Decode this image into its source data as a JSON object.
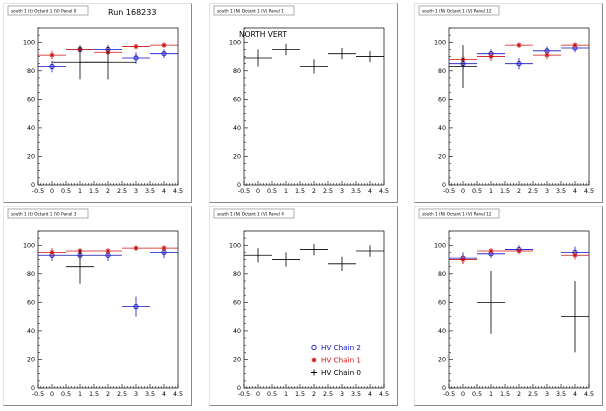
{
  "header": {
    "run_label": "Run 168233"
  },
  "colors": {
    "chain2": "#1010c8",
    "chain1": "#d01010",
    "chain0": "#000000"
  },
  "legend": [
    {
      "key": "chain2",
      "label": "HV Chain 2",
      "marker": "circle"
    },
    {
      "key": "chain1",
      "label": "HV Chain 1",
      "marker": "star"
    },
    {
      "key": "chain0",
      "label": "HV Chain 0",
      "marker": "cross"
    }
  ],
  "chart_data": [
    {
      "type": "scatter",
      "title": "south 1 (t) Octant 1 (V) Panel 0",
      "annotation": "",
      "xlim": [
        -0.5,
        4.5
      ],
      "ylim": [
        0,
        110
      ],
      "x_ticks": [
        "-0.5",
        "0",
        "0.5",
        "1",
        "1.5",
        "2",
        "2.5",
        "3",
        "3.5",
        "4",
        "4.5"
      ],
      "y_ticks": [
        "0",
        "20",
        "40",
        "60",
        "80",
        "100"
      ],
      "series": [
        {
          "key": "chain2",
          "points": [
            {
              "x": 0,
              "y": 83,
              "ex": 0.5,
              "ey": 4
            },
            {
              "x": 1,
              "y": 95,
              "ex": 0.5,
              "ey": 2
            },
            {
              "x": 2,
              "y": 95,
              "ex": 0.5,
              "ey": 2
            },
            {
              "x": 3,
              "y": 89,
              "ex": 0.5,
              "ey": 4
            },
            {
              "x": 4,
              "y": 92,
              "ex": 0.5,
              "ey": 3
            }
          ]
        },
        {
          "key": "chain1",
          "points": [
            {
              "x": 0,
              "y": 91,
              "ex": 0.5,
              "ey": 3
            },
            {
              "x": 1,
              "y": 95,
              "ex": 0.5,
              "ey": 2
            },
            {
              "x": 2,
              "y": 93,
              "ex": 0.5,
              "ey": 2
            },
            {
              "x": 3,
              "y": 97,
              "ex": 0.5,
              "ey": 2
            },
            {
              "x": 4,
              "y": 98,
              "ex": 0.5,
              "ey": 2
            }
          ]
        },
        {
          "key": "chain0",
          "points": [
            {
              "x": 1,
              "y": 86,
              "ex": 1.0,
              "ey": 12
            },
            {
              "x": 2,
              "y": 86,
              "ex": 1.0,
              "ey": 12
            }
          ]
        }
      ]
    },
    {
      "type": "scatter",
      "title": "south 1 (N) Octant 1 (V) Panel 1",
      "annotation": "NORTH VERT",
      "xlim": [
        -0.5,
        4.5
      ],
      "ylim": [
        0,
        110
      ],
      "x_ticks": [
        "-0.5",
        "0",
        "0.5",
        "1",
        "1.5",
        "2",
        "2.5",
        "3",
        "3.5",
        "4",
        "4.5"
      ],
      "y_ticks": [
        "0",
        "20",
        "40",
        "60",
        "80",
        "100"
      ],
      "series": [
        {
          "key": "chain0",
          "points": [
            {
              "x": 0,
              "y": 89,
              "ex": 0.5,
              "ey": 6
            },
            {
              "x": 1,
              "y": 95,
              "ex": 0.5,
              "ey": 4
            },
            {
              "x": 2,
              "y": 83,
              "ex": 0.5,
              "ey": 5
            },
            {
              "x": 3,
              "y": 92,
              "ex": 0.5,
              "ey": 4
            },
            {
              "x": 4,
              "y": 90,
              "ex": 0.5,
              "ey": 4
            }
          ]
        }
      ]
    },
    {
      "type": "scatter",
      "title": "south 1 (N) Octant 1 (V) Panel 12",
      "annotation": "",
      "xlim": [
        -0.5,
        4.5
      ],
      "ylim": [
        0,
        110
      ],
      "x_ticks": [
        "-0.5",
        "0",
        "0.5",
        "1",
        "1.5",
        "2",
        "2.5",
        "3",
        "3.5",
        "4",
        "4.5"
      ],
      "y_ticks": [
        "0",
        "20",
        "40",
        "60",
        "80",
        "100"
      ],
      "series": [
        {
          "key": "chain2",
          "points": [
            {
              "x": 0,
              "y": 85,
              "ex": 0.5,
              "ey": 4
            },
            {
              "x": 1,
              "y": 92,
              "ex": 0.5,
              "ey": 3
            },
            {
              "x": 2,
              "y": 85,
              "ex": 0.5,
              "ey": 4
            },
            {
              "x": 3,
              "y": 94,
              "ex": 0.5,
              "ey": 3
            },
            {
              "x": 4,
              "y": 96,
              "ex": 0.5,
              "ey": 3
            }
          ]
        },
        {
          "key": "chain1",
          "points": [
            {
              "x": 0,
              "y": 88,
              "ex": 0.5,
              "ey": 3
            },
            {
              "x": 1,
              "y": 90,
              "ex": 0.5,
              "ey": 3
            },
            {
              "x": 2,
              "y": 98,
              "ex": 0.5,
              "ey": 2
            },
            {
              "x": 3,
              "y": 91,
              "ex": 0.5,
              "ey": 3
            },
            {
              "x": 4,
              "y": 98,
              "ex": 0.5,
              "ey": 2
            }
          ]
        },
        {
          "key": "chain0",
          "points": [
            {
              "x": 0,
              "y": 83,
              "ex": 0.5,
              "ey": 15
            }
          ]
        }
      ]
    },
    {
      "type": "scatter",
      "title": "south 1 (t) Octant 1 (V) Panel 3",
      "annotation": "",
      "xlim": [
        -0.5,
        4.5
      ],
      "ylim": [
        0,
        110
      ],
      "x_ticks": [
        "-0.5",
        "0",
        "0.5",
        "1",
        "1.5",
        "2",
        "2.5",
        "3",
        "3.5",
        "4",
        "4.5"
      ],
      "y_ticks": [
        "0",
        "20",
        "40",
        "60",
        "80",
        "100"
      ],
      "series": [
        {
          "key": "chain2",
          "points": [
            {
              "x": 0,
              "y": 93,
              "ex": 0.5,
              "ey": 4
            },
            {
              "x": 1,
              "y": 93,
              "ex": 0.5,
              "ey": 4
            },
            {
              "x": 2,
              "y": 93,
              "ex": 0.5,
              "ey": 4
            },
            {
              "x": 3,
              "y": 57,
              "ex": 0.5,
              "ey": 7
            },
            {
              "x": 4,
              "y": 95,
              "ex": 0.5,
              "ey": 4
            }
          ]
        },
        {
          "key": "chain1",
          "points": [
            {
              "x": 0,
              "y": 95,
              "ex": 0.5,
              "ey": 3
            },
            {
              "x": 1,
              "y": 96,
              "ex": 0.5,
              "ey": 2
            },
            {
              "x": 2,
              "y": 96,
              "ex": 0.5,
              "ey": 2
            },
            {
              "x": 3,
              "y": 98,
              "ex": 0.5,
              "ey": 2
            },
            {
              "x": 4,
              "y": 98,
              "ex": 0.5,
              "ey": 2
            }
          ]
        },
        {
          "key": "chain0",
          "points": [
            {
              "x": 1,
              "y": 85,
              "ex": 0.5,
              "ey": 12
            }
          ]
        }
      ]
    },
    {
      "type": "scatter",
      "title": "south 1 (N) Octant 1 (V) Panel 4",
      "annotation": "",
      "xlim": [
        -0.5,
        4.5
      ],
      "ylim": [
        0,
        110
      ],
      "x_ticks": [
        "-0.5",
        "0",
        "0.5",
        "1",
        "1.5",
        "2",
        "2.5",
        "3",
        "3.5",
        "4",
        "4.5"
      ],
      "y_ticks": [
        "0",
        "20",
        "40",
        "60",
        "80",
        "100"
      ],
      "series": [
        {
          "key": "chain0",
          "points": [
            {
              "x": 0,
              "y": 93,
              "ex": 0.5,
              "ey": 5
            },
            {
              "x": 1,
              "y": 90,
              "ex": 0.5,
              "ey": 5
            },
            {
              "x": 2,
              "y": 97,
              "ex": 0.5,
              "ey": 4
            },
            {
              "x": 3,
              "y": 87,
              "ex": 0.5,
              "ey": 5
            },
            {
              "x": 4,
              "y": 96,
              "ex": 0.5,
              "ey": 4
            }
          ]
        }
      ]
    },
    {
      "type": "scatter",
      "title": "south 1 (N) Octant 1 (V) Panel 12",
      "annotation": "",
      "xlim": [
        -0.5,
        4.5
      ],
      "ylim": [
        0,
        110
      ],
      "x_ticks": [
        "-0.5",
        "0",
        "0.5",
        "1",
        "1.5",
        "2",
        "2.5",
        "3",
        "3.5",
        "4",
        "4.5"
      ],
      "y_ticks": [
        "0",
        "20",
        "40",
        "60",
        "80",
        "100"
      ],
      "series": [
        {
          "key": "chain2",
          "points": [
            {
              "x": 0,
              "y": 91,
              "ex": 0.5,
              "ey": 4
            },
            {
              "x": 1,
              "y": 94,
              "ex": 0.5,
              "ey": 3
            },
            {
              "x": 2,
              "y": 97,
              "ex": 0.5,
              "ey": 3
            },
            {
              "x": 4,
              "y": 95,
              "ex": 0.5,
              "ey": 4
            }
          ]
        },
        {
          "key": "chain1",
          "points": [
            {
              "x": 0,
              "y": 90,
              "ex": 0.5,
              "ey": 3
            },
            {
              "x": 1,
              "y": 96,
              "ex": 0.5,
              "ey": 2
            },
            {
              "x": 2,
              "y": 96,
              "ex": 0.5,
              "ey": 2
            },
            {
              "x": 4,
              "y": 93,
              "ex": 0.5,
              "ey": 3
            }
          ]
        },
        {
          "key": "chain0",
          "points": [
            {
              "x": 1,
              "y": 60,
              "ex": 0.5,
              "ey": 22
            },
            {
              "x": 4,
              "y": 50,
              "ex": 0.5,
              "ey": 25
            }
          ]
        }
      ]
    }
  ]
}
